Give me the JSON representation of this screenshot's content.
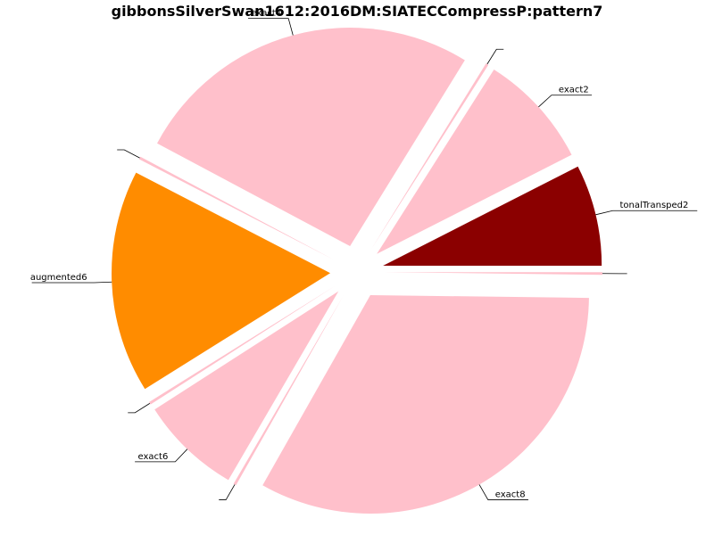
{
  "chart_data": {
    "type": "pie",
    "title": "gibbonsSilverSwan1612:2016DM:SIATECCompressP:pattern7",
    "slices": [
      {
        "label": "tonalTransped2",
        "value": 7.5,
        "color": "#8b0000"
      },
      {
        "label": "exact2",
        "value": 8.5,
        "color": "#ffc0cb"
      },
      {
        "label": "",
        "value": 0.2,
        "color": "#ffc0cb"
      },
      {
        "label": "exact4",
        "value": 26.0,
        "color": "#ffc0cb"
      },
      {
        "label": "",
        "value": 0.2,
        "color": "#ffc0cb"
      },
      {
        "label": "augmented6",
        "value": 16.5,
        "color": "#ff8c00"
      },
      {
        "label": "",
        "value": 0.2,
        "color": "#ffc0cb"
      },
      {
        "label": "exact6",
        "value": 7.5,
        "color": "#ffc0cb"
      },
      {
        "label": "",
        "value": 0.2,
        "color": "#ffc0cb"
      },
      {
        "label": "exact8",
        "value": 33.0,
        "color": "#ffc0cb"
      },
      {
        "label": "",
        "value": 0.2,
        "color": "#ffc0cb"
      }
    ],
    "start_angle_deg": 0,
    "direction": "counterclockwise",
    "explode": true
  }
}
